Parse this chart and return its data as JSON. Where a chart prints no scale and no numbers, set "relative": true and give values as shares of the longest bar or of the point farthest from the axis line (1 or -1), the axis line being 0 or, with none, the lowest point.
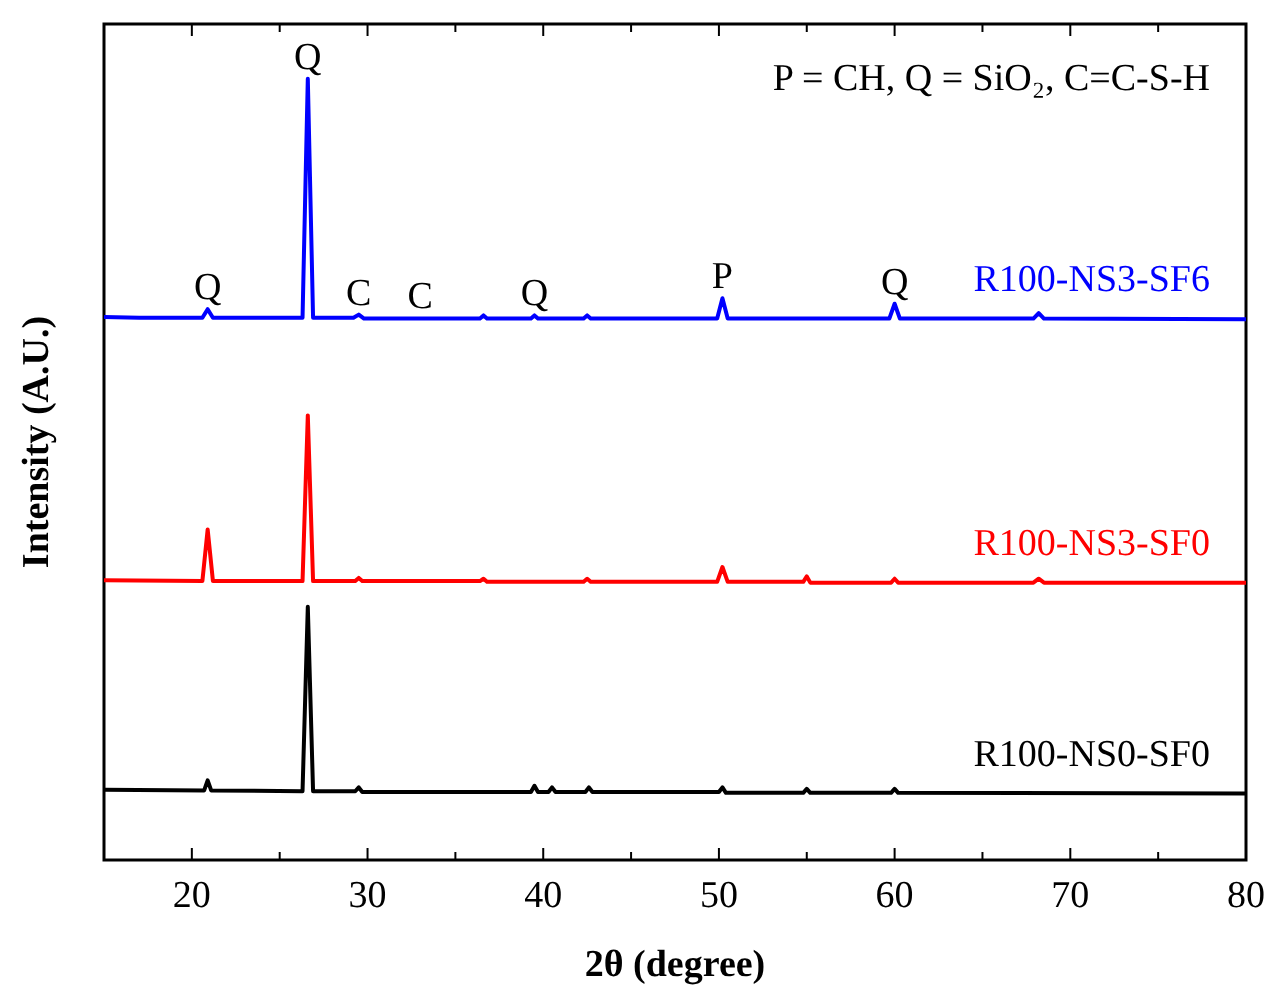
{
  "chart_data": {
    "type": "line",
    "relative": true,
    "xlabel": "2θ (degree)",
    "ylabel": "Intensity (A.U.)",
    "xlim": [
      15,
      80
    ],
    "xticks": [
      20,
      {
        "value": 25,
        "label": null
      },
      30,
      {
        "value": 35,
        "label": null
      },
      40,
      {
        "value": 45,
        "label": null
      },
      50,
      {
        "value": 55,
        "label": null
      },
      60,
      {
        "value": 65,
        "label": null
      },
      70,
      {
        "value": 75,
        "label": null
      },
      80
    ],
    "grid": false,
    "legend": false,
    "marker": "none",
    "line_style": "solid",
    "annotations": [
      "P = CH, Q = SiO₂, C=C-S-H",
      {
        "text": "Q",
        "x": 20.9,
        "y": 0.705
      },
      {
        "text": "Q",
        "x": 26.6,
        "y": 1.0
      },
      {
        "text": "C",
        "x": 29.5,
        "y": 0.698
      },
      {
        "text": "C",
        "x": 33,
        "y": 0.694
      },
      {
        "text": "Q",
        "x": 39.5,
        "y": 0.697
      },
      {
        "text": "P",
        "x": 50.2,
        "y": 0.719
      },
      {
        "text": "Q",
        "x": 60,
        "y": 0.712
      }
    ],
    "series": [
      {
        "name": "R100-NS3-SF6",
        "color": "#0000ff",
        "x": [
          15,
          17,
          20.6,
          20.9,
          21.2,
          26.3,
          26.6,
          26.9,
          29.2,
          29.5,
          29.8,
          36.4,
          36.6,
          36.8,
          39.3,
          39.5,
          39.7,
          42.3,
          42.5,
          42.7,
          49.9,
          50.2,
          50.5,
          59.7,
          60,
          60.3,
          67.9,
          68.2,
          68.5,
          80
        ],
        "values": [
          0.695,
          0.694,
          0.694,
          0.705,
          0.694,
          0.694,
          1.0,
          0.694,
          0.694,
          0.698,
          0.693,
          0.693,
          0.697,
          0.693,
          0.693,
          0.697,
          0.693,
          0.693,
          0.697,
          0.693,
          0.693,
          0.719,
          0.693,
          0.693,
          0.712,
          0.693,
          0.693,
          0.7,
          0.693,
          0.692
        ]
      },
      {
        "name": "R100-NS3-SF0",
        "color": "#ff0000",
        "x": [
          15,
          20.6,
          20.9,
          21.2,
          26.3,
          26.6,
          26.9,
          29.3,
          29.5,
          29.7,
          36.4,
          36.6,
          36.8,
          42.3,
          42.5,
          42.7,
          49.9,
          50.2,
          50.5,
          54.8,
          55,
          55.2,
          59.8,
          60,
          60.2,
          67.9,
          68.2,
          68.5,
          80
        ],
        "values": [
          0.358,
          0.357,
          0.423,
          0.357,
          0.357,
          0.569,
          0.357,
          0.357,
          0.361,
          0.357,
          0.357,
          0.36,
          0.356,
          0.356,
          0.36,
          0.356,
          0.356,
          0.375,
          0.356,
          0.356,
          0.363,
          0.355,
          0.355,
          0.36,
          0.355,
          0.355,
          0.36,
          0.355,
          0.355
        ]
      },
      {
        "name": "R100-NS0-SF0",
        "color": "#000000",
        "x": [
          15,
          20.7,
          20.9,
          21.1,
          26.3,
          26.6,
          26.9,
          29.3,
          29.5,
          29.7,
          39.3,
          39.5,
          39.7,
          40.3,
          40.5,
          40.7,
          42.4,
          42.6,
          42.8,
          50,
          50.2,
          50.4,
          54.8,
          55,
          55.2,
          59.8,
          60,
          60.2,
          80
        ],
        "values": [
          0.09,
          0.089,
          0.102,
          0.089,
          0.088,
          0.324,
          0.088,
          0.088,
          0.093,
          0.087,
          0.087,
          0.095,
          0.087,
          0.087,
          0.093,
          0.087,
          0.087,
          0.093,
          0.087,
          0.087,
          0.093,
          0.086,
          0.086,
          0.091,
          0.086,
          0.086,
          0.091,
          0.086,
          0.085
        ]
      }
    ]
  }
}
